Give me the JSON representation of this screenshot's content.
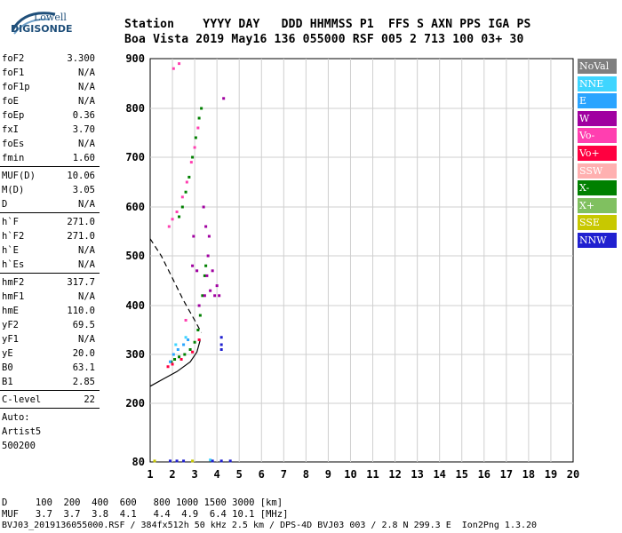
{
  "logo": {
    "line1": "Lowell",
    "line2": "DIGISONDE"
  },
  "header": {
    "line1": "Station    YYYY DAY   DDD HHMMSS P1  FFS S AXN PPS IGA PS",
    "line2": "Boa Vista 2019 May16 136 055000 RSF 005 2 713 100 03+ 30"
  },
  "params": [
    {
      "k": "foF2",
      "v": "3.300"
    },
    {
      "k": "foF1",
      "v": "N/A"
    },
    {
      "k": "foF1p",
      "v": "N/A"
    },
    {
      "k": "foE",
      "v": "N/A"
    },
    {
      "k": "foEp",
      "v": "0.36"
    },
    {
      "k": "fxI",
      "v": "3.70"
    },
    {
      "k": "foEs",
      "v": "N/A"
    },
    {
      "k": "fmin",
      "v": "1.60"
    },
    {
      "sep": true
    },
    {
      "k": "MUF(D)",
      "v": "10.06"
    },
    {
      "k": "M(D)",
      "v": "3.05"
    },
    {
      "k": "D",
      "v": "N/A"
    },
    {
      "sep": true
    },
    {
      "k": "h`F",
      "v": "271.0"
    },
    {
      "k": "h`F2",
      "v": "271.0"
    },
    {
      "k": "h`E",
      "v": "N/A"
    },
    {
      "k": "h`Es",
      "v": "N/A"
    },
    {
      "sep": true
    },
    {
      "k": "hmF2",
      "v": "317.7"
    },
    {
      "k": "hmF1",
      "v": "N/A"
    },
    {
      "k": "hmE",
      "v": "110.0"
    },
    {
      "k": "yF2",
      "v": "69.5"
    },
    {
      "k": "yF1",
      "v": "N/A"
    },
    {
      "k": "yE",
      "v": "20.0"
    },
    {
      "k": "B0",
      "v": "63.1"
    },
    {
      "k": "B1",
      "v": "2.85"
    },
    {
      "sep": true
    },
    {
      "k": "C-level",
      "v": "22"
    },
    {
      "sep": true
    },
    {
      "k": "Auto:",
      "v": ""
    },
    {
      "k": "Artist5",
      "v": ""
    },
    {
      "k": "500200",
      "v": ""
    }
  ],
  "legend": [
    {
      "label": "NoVal",
      "color": "#7f7f7f"
    },
    {
      "label": "NNE",
      "color": "#3fd5ff"
    },
    {
      "label": "E",
      "color": "#2aa4ff"
    },
    {
      "label": "W",
      "color": "#a000a0"
    },
    {
      "label": "Vo-",
      "color": "#ff3fb0"
    },
    {
      "label": "Vo+",
      "color": "#ff0040"
    },
    {
      "label": "SSW",
      "color": "#ffb0b0"
    },
    {
      "label": "X-",
      "color": "#008000"
    },
    {
      "label": "X+",
      "color": "#80c060"
    },
    {
      "label": "SSE",
      "color": "#c8c800"
    },
    {
      "label": "NNW",
      "color": "#2020d0"
    }
  ],
  "footer": {
    "d_row": "D     100  200  400  600   800 1000 1500 3000 [km]",
    "muf_row": "MUF   3.7  3.7  3.8  4.1   4.4  4.9  6.4 10.1 [MHz]",
    "info": "BVJ03_2019136055000.RSF / 384fx512h 50 kHz 2.5 km / DPS-4D BVJ03 003 / 2.8 N 299.3 E  Ion2Png 1.3.20"
  },
  "chart_data": {
    "type": "scatter",
    "title": "",
    "xlabel": "",
    "ylabel": "",
    "xlim": [
      1,
      20
    ],
    "ylim": [
      80,
      900
    ],
    "x_ticks": [
      1,
      2,
      3,
      4,
      5,
      6,
      7,
      8,
      9,
      10,
      11,
      12,
      13,
      14,
      15,
      16,
      17,
      18,
      19,
      20
    ],
    "y_ticks": [
      80,
      200,
      300,
      400,
      500,
      600,
      700,
      800,
      900
    ],
    "grid": true,
    "legend_position": "right",
    "series": [
      {
        "name": "X-",
        "color": "#008000",
        "points": [
          [
            1.95,
            285
          ],
          [
            2.1,
            290
          ],
          [
            2.3,
            295
          ],
          [
            2.55,
            300
          ],
          [
            2.8,
            310
          ],
          [
            3.0,
            325
          ],
          [
            3.15,
            350
          ],
          [
            3.25,
            380
          ],
          [
            3.35,
            420
          ],
          [
            3.45,
            460
          ],
          [
            3.5,
            480
          ],
          [
            2.3,
            580
          ],
          [
            2.45,
            600
          ],
          [
            2.6,
            630
          ],
          [
            2.75,
            660
          ],
          [
            2.9,
            700
          ],
          [
            3.05,
            740
          ],
          [
            3.2,
            780
          ],
          [
            3.3,
            800
          ]
        ]
      },
      {
        "name": "W",
        "color": "#a000a0",
        "points": [
          [
            3.45,
            420
          ],
          [
            3.55,
            460
          ],
          [
            3.6,
            500
          ],
          [
            3.65,
            540
          ],
          [
            3.7,
            430
          ],
          [
            3.8,
            470
          ],
          [
            3.9,
            420
          ],
          [
            4.0,
            440
          ],
          [
            4.1,
            420
          ],
          [
            3.5,
            560
          ],
          [
            3.4,
            600
          ],
          [
            2.9,
            480
          ],
          [
            2.95,
            540
          ],
          [
            3.1,
            470
          ],
          [
            4.3,
            820
          ],
          [
            3.2,
            400
          ]
        ]
      },
      {
        "name": "Vo-",
        "color": "#ff3fb0",
        "points": [
          [
            1.85,
            560
          ],
          [
            2.0,
            575
          ],
          [
            2.2,
            590
          ],
          [
            2.45,
            620
          ],
          [
            2.65,
            650
          ],
          [
            2.85,
            690
          ],
          [
            3.0,
            720
          ],
          [
            3.15,
            760
          ],
          [
            2.05,
            880
          ],
          [
            2.3,
            890
          ],
          [
            2.6,
            370
          ]
        ]
      },
      {
        "name": "E",
        "color": "#2aa4ff",
        "points": [
          [
            1.9,
            285
          ],
          [
            2.05,
            300
          ],
          [
            2.25,
            310
          ],
          [
            2.5,
            320
          ],
          [
            2.7,
            330
          ]
        ]
      },
      {
        "name": "NNE",
        "color": "#3fd5ff",
        "points": [
          [
            2.15,
            320
          ],
          [
            2.6,
            335
          ],
          [
            3.7,
            84
          ]
        ]
      },
      {
        "name": "Vo+",
        "color": "#ff0040",
        "points": [
          [
            1.8,
            275
          ],
          [
            2.0,
            280
          ],
          [
            2.4,
            290
          ],
          [
            2.9,
            305
          ],
          [
            3.2,
            330
          ]
        ]
      },
      {
        "name": "NNW",
        "color": "#2020d0",
        "points": [
          [
            1.9,
            82
          ],
          [
            2.2,
            82
          ],
          [
            2.5,
            82
          ],
          [
            3.8,
            82
          ],
          [
            4.2,
            82
          ],
          [
            4.6,
            82
          ],
          [
            4.2,
            320
          ],
          [
            4.2,
            335
          ],
          [
            4.2,
            310
          ]
        ]
      },
      {
        "name": "SSE",
        "color": "#c8c800",
        "points": [
          [
            1.2,
            82
          ],
          [
            2.9,
            82
          ]
        ]
      }
    ],
    "lines": [
      {
        "style": "solid",
        "points": [
          [
            1,
            235
          ],
          [
            1.6,
            250
          ],
          [
            2.2,
            265
          ],
          [
            2.8,
            285
          ],
          [
            3.1,
            305
          ],
          [
            3.25,
            330
          ]
        ]
      },
      {
        "style": "dashed",
        "points": [
          [
            1,
            535
          ],
          [
            1.5,
            500
          ],
          [
            2.0,
            455
          ],
          [
            2.5,
            410
          ],
          [
            3.0,
            370
          ],
          [
            3.3,
            345
          ]
        ]
      }
    ]
  }
}
